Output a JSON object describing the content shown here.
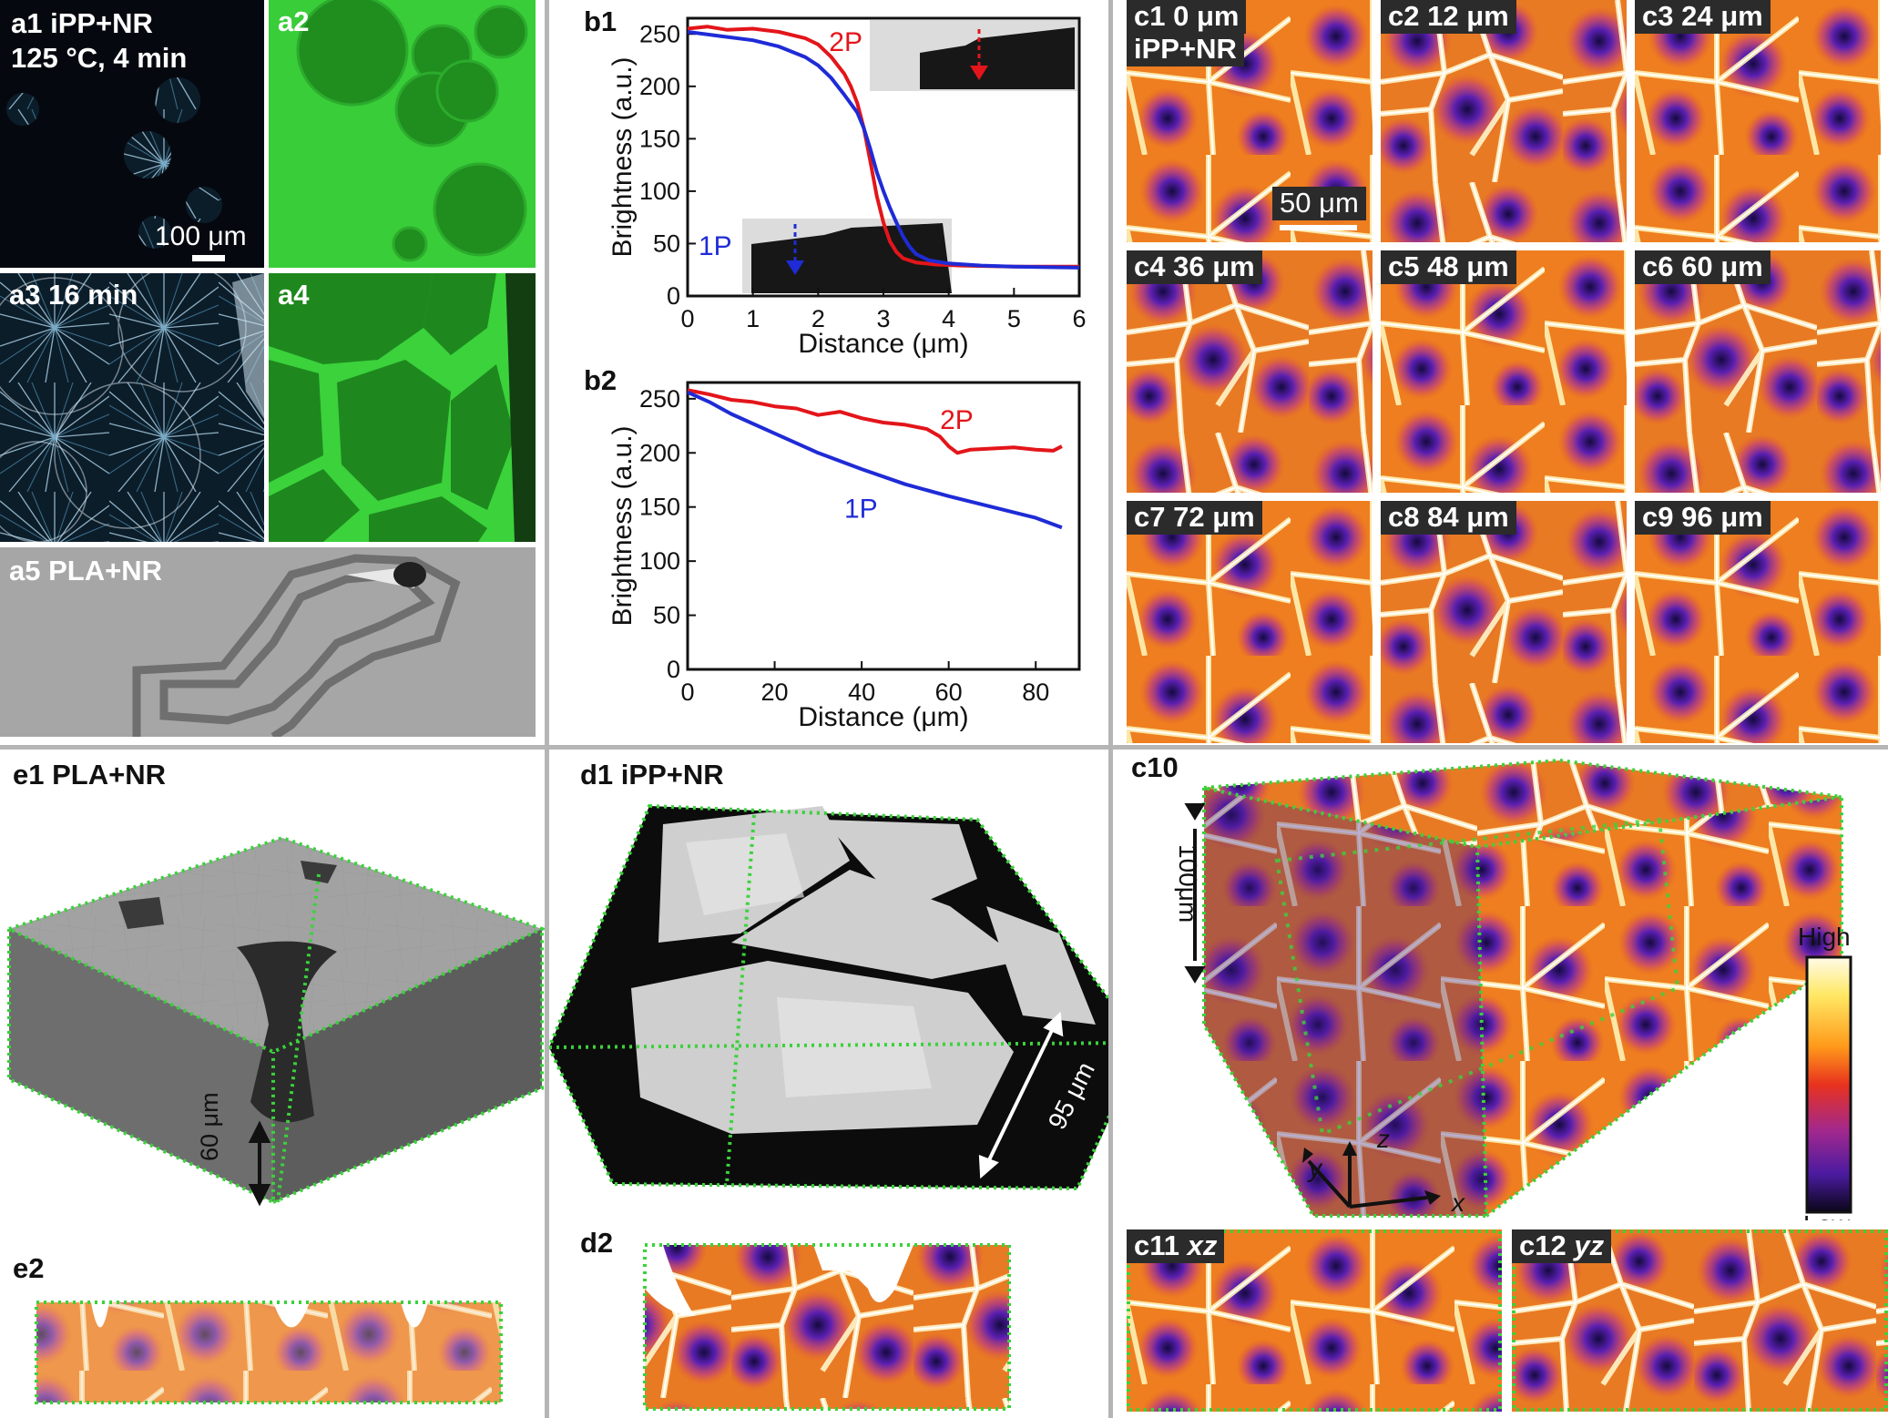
{
  "colors": {
    "red_series": "#e3151a",
    "blue_series": "#1f2bd6",
    "guide_green": "#3bd23b",
    "fluor_green": "#2fc12f",
    "divider": "#b5b5b5"
  },
  "panels": {
    "a1": {
      "line1": "a1 iPP+NR",
      "line2": "125 °C, 4 min",
      "scale": "100 μm"
    },
    "a2": {
      "label": "a2"
    },
    "a3": {
      "label": "a3 16 min"
    },
    "a4": {
      "label": "a4"
    },
    "a5": {
      "label": "a5 PLA+NR"
    },
    "c_tiles": [
      {
        "label": "c1 0 μm",
        "sub": "iPP+NR"
      },
      {
        "label": "c2 12 μm"
      },
      {
        "label": "c3 24 μm"
      },
      {
        "label": "c4 36 μm"
      },
      {
        "label": "c5 48 μm"
      },
      {
        "label": "c6 60 μm"
      },
      {
        "label": "c7 72 μm"
      },
      {
        "label": "c8 84 μm"
      },
      {
        "label": "c9 96 μm"
      }
    ],
    "c_scale": "50 μm",
    "c10": {
      "label": "c10",
      "depth": "100μm",
      "axis_x": "x",
      "axis_y": "y",
      "axis_z": "z",
      "colorbar_high": "High",
      "colorbar_low": "Low"
    },
    "c11": {
      "prefix": "c11 ",
      "axis": "xz"
    },
    "c12": {
      "prefix": "c12 ",
      "axis": "yz"
    },
    "d1": {
      "label": "d1 iPP+NR",
      "dim": "95 μm"
    },
    "d2": {
      "label": "d2"
    },
    "e1": {
      "label": "e1 PLA+NR",
      "dim": "60 μm"
    },
    "e2": {
      "label": "e2"
    }
  },
  "chart_data": [
    {
      "id": "b1",
      "type": "line",
      "panel_label": "b1",
      "xlabel": "Distance (μm)",
      "ylabel": "Brightness (a.u.)",
      "xlim": [
        0,
        6
      ],
      "ylim": [
        0,
        265
      ],
      "xticks": [
        0,
        1,
        2,
        3,
        4,
        5,
        6
      ],
      "yticks": [
        0,
        50,
        100,
        150,
        200,
        250
      ],
      "series": [
        {
          "name": "2P",
          "color": "#e3151a",
          "x": [
            0,
            0.3,
            0.6,
            1.0,
            1.4,
            1.8,
            2.0,
            2.2,
            2.4,
            2.5,
            2.6,
            2.7,
            2.8,
            2.9,
            3.0,
            3.1,
            3.2,
            3.3,
            3.5,
            3.8,
            4.2,
            5.0,
            6.0
          ],
          "y": [
            255,
            257,
            254,
            255,
            252,
            246,
            240,
            228,
            212,
            200,
            184,
            160,
            128,
            95,
            70,
            52,
            42,
            36,
            32,
            30,
            29,
            28,
            28
          ]
        },
        {
          "name": "1P",
          "color": "#1f2bd6",
          "x": [
            0,
            0.5,
            1.0,
            1.4,
            1.8,
            2.0,
            2.2,
            2.4,
            2.6,
            2.7,
            2.8,
            2.9,
            3.0,
            3.1,
            3.2,
            3.3,
            3.4,
            3.5,
            3.7,
            4.0,
            4.5,
            5.0,
            6.0
          ],
          "y": [
            252,
            248,
            244,
            238,
            228,
            220,
            208,
            192,
            175,
            160,
            140,
            118,
            100,
            84,
            70,
            57,
            47,
            40,
            34,
            31,
            29,
            28,
            27
          ]
        }
      ],
      "inset_labels": [
        "2P",
        "1P"
      ]
    },
    {
      "id": "b2",
      "type": "line",
      "panel_label": "b2",
      "xlabel": "Distance (μm)",
      "ylabel": "Brightness (a.u.)",
      "xlim": [
        0,
        90
      ],
      "ylim": [
        0,
        265
      ],
      "xticks": [
        0,
        20,
        40,
        60,
        80
      ],
      "yticks": [
        0,
        50,
        100,
        150,
        200,
        250
      ],
      "series": [
        {
          "name": "2P",
          "color": "#e3151a",
          "x": [
            0,
            5,
            10,
            15,
            20,
            25,
            30,
            35,
            40,
            45,
            50,
            55,
            58,
            60,
            62,
            65,
            70,
            75,
            80,
            84,
            86
          ],
          "y": [
            258,
            254,
            249,
            247,
            243,
            241,
            235,
            238,
            232,
            228,
            226,
            222,
            215,
            206,
            200,
            203,
            204,
            205,
            203,
            202,
            206
          ]
        },
        {
          "name": "1P",
          "color": "#1f2bd6",
          "x": [
            0,
            5,
            10,
            20,
            30,
            40,
            50,
            60,
            70,
            80,
            86
          ],
          "y": [
            256,
            247,
            236,
            218,
            200,
            185,
            171,
            160,
            150,
            140,
            131
          ]
        }
      ]
    }
  ]
}
